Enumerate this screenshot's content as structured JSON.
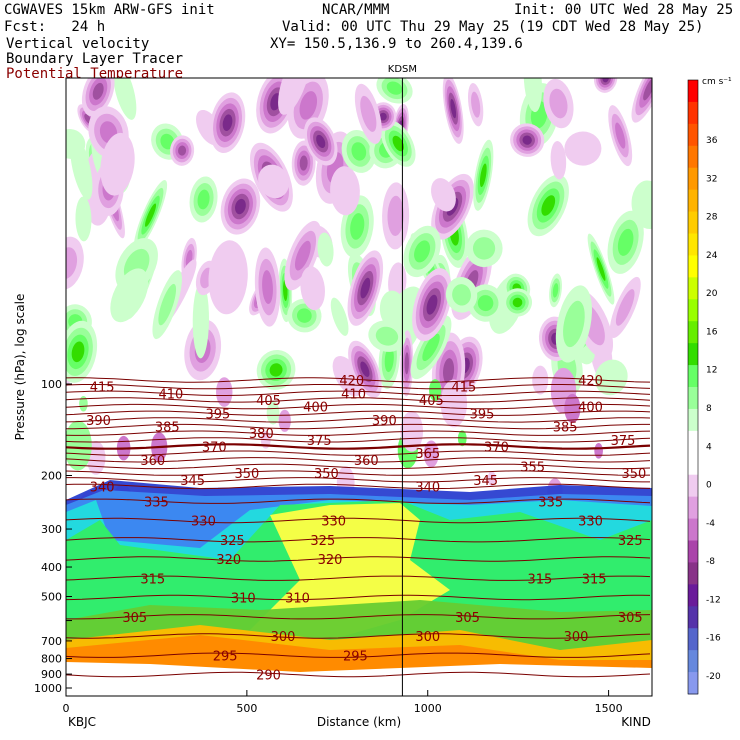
{
  "header": {
    "model": "CGWAVES 15km ARW-GFS init",
    "forecast": "Fcst:   24 h",
    "org": "NCAR/MMM",
    "init": "Init: 00 UTC Wed 28 May 25",
    "valid": "Valid: 00 UTC Thu 29 May 25 (19 CDT Wed 28 May 25)",
    "xy": "XY= 150.5,136.9 to 260.4,139.6",
    "fields": [
      "Vertical velocity",
      "Boundary Layer Tracer",
      "Potential Temperature"
    ]
  },
  "colors": {
    "theta": "#7a0000",
    "theta_label_field": "#8b0000"
  },
  "chart_data": {
    "type": "heatmap",
    "title": "",
    "xlabel": "Distance (km)",
    "ylabel": "Pressure (hPa), log scale",
    "x_range": [
      0,
      1620
    ],
    "x_ticks": [
      0,
      500,
      1000,
      1500
    ],
    "y_scale": "log",
    "y_ticks": [
      100,
      200,
      300,
      400,
      500,
      600,
      700,
      800,
      900,
      1000
    ],
    "y_tick_labels": [
      "100",
      "200",
      "300",
      "400",
      "500",
      "",
      "700",
      "800",
      "900",
      "1000"
    ],
    "endpoints": {
      "left": "KBJC",
      "right": "KIND"
    },
    "marker": {
      "label": "KDSM",
      "x": 930
    },
    "colorbar": {
      "unit": "cm s⁻¹",
      "labels": [
        "36",
        "32",
        "28",
        "24",
        "20",
        "16",
        "12",
        "8",
        "4",
        "0",
        "-4",
        "-8",
        "-12",
        "-16",
        "-20"
      ],
      "colors": [
        "#ff0000",
        "#ff3300",
        "#ff5500",
        "#ff7700",
        "#ff9900",
        "#ffb300",
        "#ffcc00",
        "#ffe600",
        "#ffff00",
        "#ccff00",
        "#99ff00",
        "#66ee00",
        "#33dd00",
        "#66ff66",
        "#99ff99",
        "#ccffcc",
        "#ffffff",
        "#ffffff",
        "#f0ccf0",
        "#e0a0e0",
        "#cc77cc",
        "#aa44aa",
        "#883388",
        "#6a1b9a",
        "#5533aa",
        "#5566cc",
        "#6688dd",
        "#8899ee"
      ]
    },
    "theta_contours": [
      {
        "value": 420,
        "label_x": [
          790,
          1450
        ]
      },
      {
        "value": 415,
        "label_x": [
          100,
          1100
        ]
      },
      {
        "value": 410,
        "label_x": [
          290,
          795
        ]
      },
      {
        "value": 405,
        "label_x": [
          560,
          1010
        ]
      },
      {
        "value": 400,
        "label_x": [
          690,
          1450
        ]
      },
      {
        "value": 395,
        "label_x": [
          420,
          1150
        ]
      },
      {
        "value": 390,
        "label_x": [
          90,
          880
        ]
      },
      {
        "value": 385,
        "label_x": [
          280,
          1380
        ]
      },
      {
        "value": 380,
        "label_x": [
          540
        ]
      },
      {
        "value": 375,
        "label_x": [
          700,
          1540
        ]
      },
      {
        "value": 370,
        "label_x": [
          410,
          1190
        ]
      },
      {
        "value": 365,
        "label_x": [
          1000
        ]
      },
      {
        "value": 360,
        "label_x": [
          240,
          830
        ]
      },
      {
        "value": 355,
        "label_x": [
          1290
        ]
      },
      {
        "value": 350,
        "label_x": [
          500,
          720,
          1570
        ]
      },
      {
        "value": 345,
        "label_x": [
          350,
          1160
        ]
      },
      {
        "value": 340,
        "label_x": [
          100,
          1000
        ]
      },
      {
        "value": 335,
        "label_x": [
          250,
          1340
        ]
      },
      {
        "value": 330,
        "label_x": [
          380,
          740,
          1450
        ]
      },
      {
        "value": 325,
        "label_x": [
          460,
          710,
          1560
        ]
      },
      {
        "value": 320,
        "label_x": [
          450,
          730
        ]
      },
      {
        "value": 315,
        "label_x": [
          240,
          1310,
          1460
        ]
      },
      {
        "value": 310,
        "label_x": [
          490,
          640
        ]
      },
      {
        "value": 305,
        "label_x": [
          190,
          1110,
          1560
        ]
      },
      {
        "value": 300,
        "label_x": [
          600,
          1000,
          1410
        ]
      },
      {
        "value": 295,
        "label_x": [
          440,
          800
        ]
      },
      {
        "value": 290,
        "label_x": [
          560
        ]
      }
    ]
  }
}
